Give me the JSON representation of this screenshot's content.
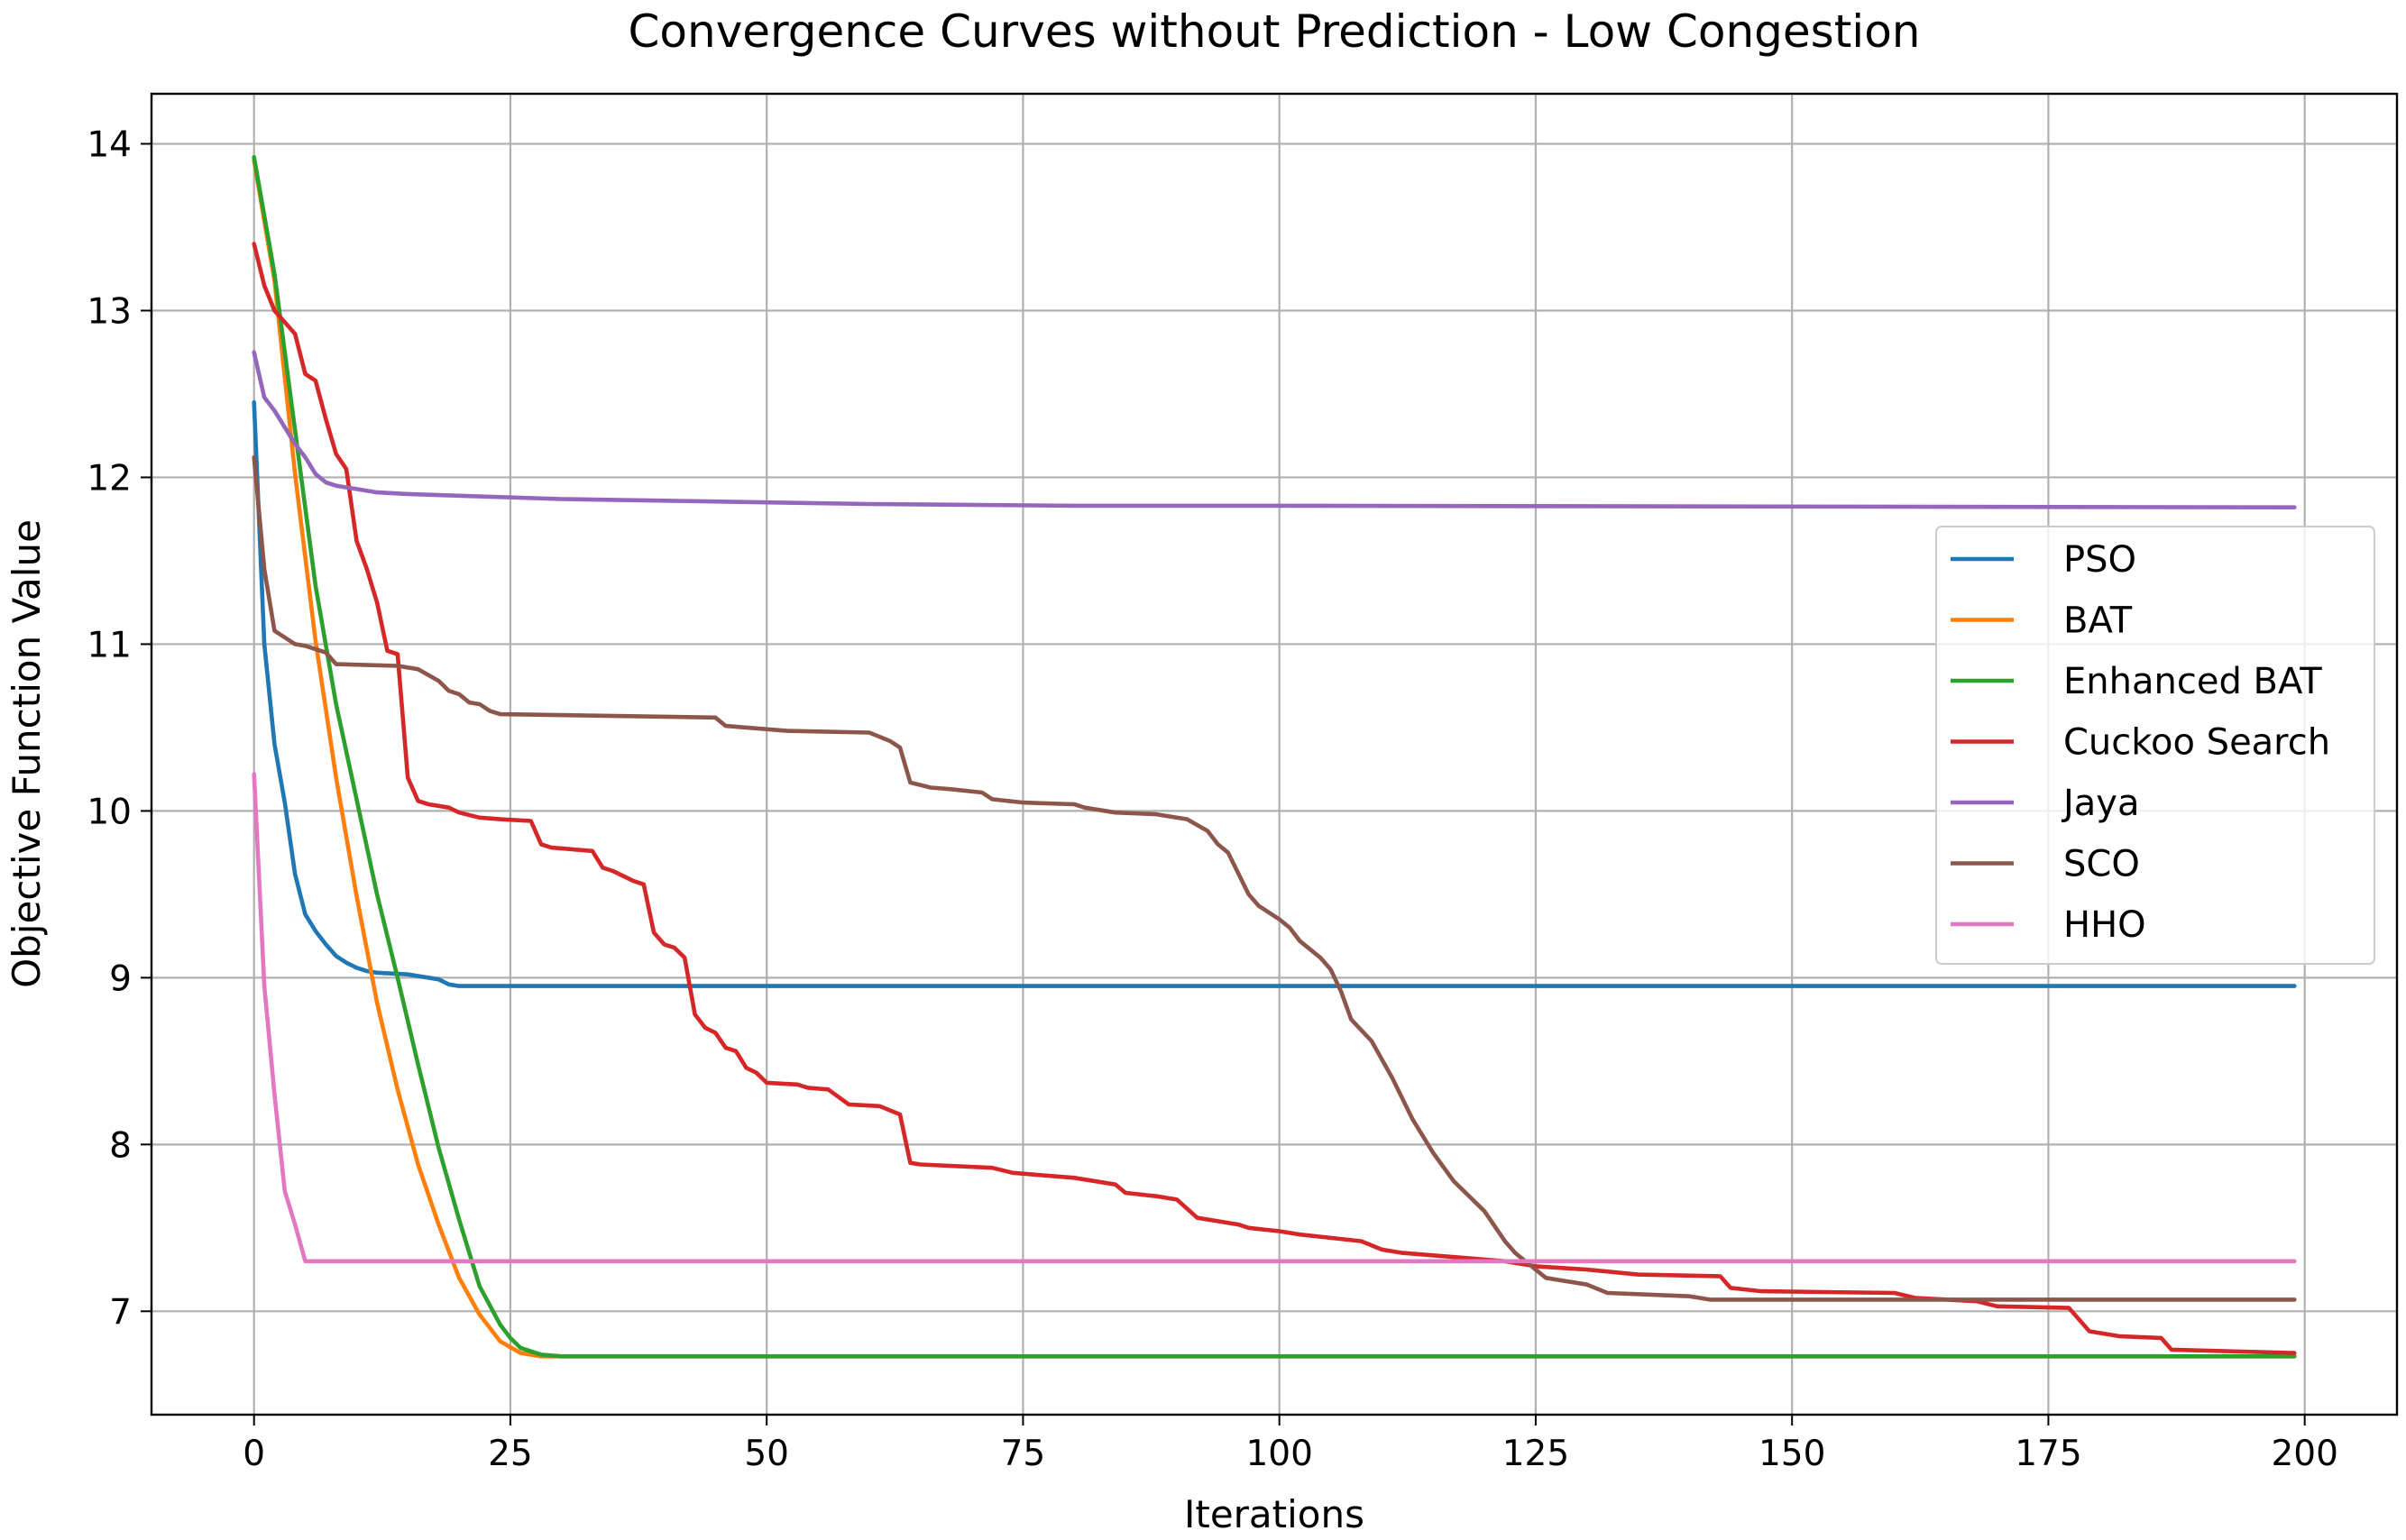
{
  "chart_data": {
    "type": "line",
    "title": "Convergence Curves without Prediction - Low Congestion",
    "xlabel": "Iterations",
    "ylabel": "Objective Function Value",
    "xlim": [
      -10,
      209
    ],
    "ylim": [
      6.38,
      14.3
    ],
    "xticks": [
      0,
      25,
      50,
      75,
      100,
      125,
      150,
      175,
      200
    ],
    "yticks": [
      7,
      8,
      9,
      10,
      11,
      12,
      13,
      14
    ],
    "xtick_labels": [
      "0",
      "25",
      "50",
      "75",
      "100",
      "125",
      "150",
      "175",
      "200"
    ],
    "ytick_labels": [
      "7",
      "8",
      "9",
      "10",
      "11",
      "12",
      "13",
      "14"
    ],
    "grid": true,
    "legend_position": "center-right",
    "series": [
      {
        "name": "PSO",
        "color": "#1f77b4",
        "points": [
          [
            0,
            12.45
          ],
          [
            1,
            11.0
          ],
          [
            2,
            10.4
          ],
          [
            3,
            10.05
          ],
          [
            4,
            9.62
          ],
          [
            5,
            9.38
          ],
          [
            6,
            9.28
          ],
          [
            7,
            9.2
          ],
          [
            8,
            9.13
          ],
          [
            9,
            9.09
          ],
          [
            10,
            9.06
          ],
          [
            11,
            9.04
          ],
          [
            12,
            9.03
          ],
          [
            15,
            9.02
          ],
          [
            18,
            8.99
          ],
          [
            19,
            8.96
          ],
          [
            20,
            8.95
          ],
          [
            199,
            8.95
          ]
        ]
      },
      {
        "name": "BAT",
        "color": "#ff7f0e",
        "points": [
          [
            0,
            13.9
          ],
          [
            2,
            13.18
          ],
          [
            4,
            12.02
          ],
          [
            6,
            11.02
          ],
          [
            8,
            10.2
          ],
          [
            10,
            9.49
          ],
          [
            12,
            8.85
          ],
          [
            14,
            8.33
          ],
          [
            16,
            7.88
          ],
          [
            18,
            7.52
          ],
          [
            20,
            7.2
          ],
          [
            22,
            6.98
          ],
          [
            24,
            6.82
          ],
          [
            26,
            6.75
          ],
          [
            28,
            6.73
          ],
          [
            199,
            6.73
          ]
        ]
      },
      {
        "name": "Enhanced BAT",
        "color": "#2ca02c",
        "points": [
          [
            0,
            13.92
          ],
          [
            2,
            13.22
          ],
          [
            4,
            12.28
          ],
          [
            6,
            11.35
          ],
          [
            8,
            10.64
          ],
          [
            10,
            10.07
          ],
          [
            12,
            9.5
          ],
          [
            14,
            9.0
          ],
          [
            16,
            8.48
          ],
          [
            18,
            7.98
          ],
          [
            20,
            7.55
          ],
          [
            22,
            7.15
          ],
          [
            24,
            6.92
          ],
          [
            25,
            6.84
          ],
          [
            26,
            6.78
          ],
          [
            28,
            6.74
          ],
          [
            30,
            6.73
          ],
          [
            199,
            6.73
          ]
        ]
      },
      {
        "name": "Cuckoo Search",
        "color": "#d62728",
        "points": [
          [
            0,
            13.4
          ],
          [
            1,
            13.15
          ],
          [
            2,
            13.0
          ],
          [
            3,
            12.93
          ],
          [
            4,
            12.86
          ],
          [
            5,
            12.62
          ],
          [
            6,
            12.58
          ],
          [
            7,
            12.35
          ],
          [
            8,
            12.14
          ],
          [
            9,
            12.05
          ],
          [
            10,
            11.62
          ],
          [
            11,
            11.45
          ],
          [
            12,
            11.25
          ],
          [
            13,
            10.96
          ],
          [
            14,
            10.94
          ],
          [
            15,
            10.2
          ],
          [
            16,
            10.06
          ],
          [
            17,
            10.04
          ],
          [
            18,
            10.03
          ],
          [
            19,
            10.02
          ],
          [
            20,
            9.99
          ],
          [
            22,
            9.96
          ],
          [
            24,
            9.95
          ],
          [
            27,
            9.94
          ],
          [
            28,
            9.8
          ],
          [
            29,
            9.78
          ],
          [
            33,
            9.76
          ],
          [
            34,
            9.66
          ],
          [
            35,
            9.64
          ],
          [
            37,
            9.58
          ],
          [
            38,
            9.56
          ],
          [
            39,
            9.27
          ],
          [
            40,
            9.2
          ],
          [
            41,
            9.18
          ],
          [
            42,
            9.12
          ],
          [
            43,
            8.78
          ],
          [
            44,
            8.7
          ],
          [
            45,
            8.67
          ],
          [
            46,
            8.58
          ],
          [
            47,
            8.56
          ],
          [
            48,
            8.46
          ],
          [
            49,
            8.43
          ],
          [
            50,
            8.37
          ],
          [
            53,
            8.36
          ],
          [
            54,
            8.34
          ],
          [
            56,
            8.33
          ],
          [
            58,
            8.24
          ],
          [
            61,
            8.23
          ],
          [
            63,
            8.18
          ],
          [
            64,
            7.89
          ],
          [
            65,
            7.88
          ],
          [
            72,
            7.86
          ],
          [
            74,
            7.83
          ],
          [
            80,
            7.8
          ],
          [
            84,
            7.76
          ],
          [
            85,
            7.71
          ],
          [
            88,
            7.69
          ],
          [
            90,
            7.67
          ],
          [
            92,
            7.56
          ],
          [
            94,
            7.54
          ],
          [
            96,
            7.52
          ],
          [
            97,
            7.5
          ],
          [
            100,
            7.48
          ],
          [
            102,
            7.46
          ],
          [
            105,
            7.44
          ],
          [
            108,
            7.42
          ],
          [
            110,
            7.37
          ],
          [
            112,
            7.35
          ],
          [
            118,
            7.32
          ],
          [
            122,
            7.3
          ],
          [
            125,
            7.27
          ],
          [
            130,
            7.25
          ],
          [
            135,
            7.22
          ],
          [
            143,
            7.21
          ],
          [
            144,
            7.14
          ],
          [
            147,
            7.12
          ],
          [
            160,
            7.11
          ],
          [
            162,
            7.08
          ],
          [
            168,
            7.06
          ],
          [
            170,
            7.03
          ],
          [
            177,
            7.02
          ],
          [
            179,
            6.88
          ],
          [
            182,
            6.85
          ],
          [
            186,
            6.84
          ],
          [
            187,
            6.77
          ],
          [
            199,
            6.75
          ]
        ]
      },
      {
        "name": "Jaya",
        "color": "#9467bd",
        "points": [
          [
            0,
            12.75
          ],
          [
            1,
            12.48
          ],
          [
            2,
            12.4
          ],
          [
            3,
            12.3
          ],
          [
            4,
            12.2
          ],
          [
            5,
            12.12
          ],
          [
            6,
            12.02
          ],
          [
            7,
            11.97
          ],
          [
            8,
            11.95
          ],
          [
            10,
            11.93
          ],
          [
            12,
            11.91
          ],
          [
            15,
            11.9
          ],
          [
            20,
            11.89
          ],
          [
            30,
            11.87
          ],
          [
            40,
            11.86
          ],
          [
            50,
            11.85
          ],
          [
            60,
            11.84
          ],
          [
            80,
            11.83
          ],
          [
            100,
            11.83
          ],
          [
            199,
            11.82
          ]
        ]
      },
      {
        "name": "SCO",
        "color": "#8c564b",
        "points": [
          [
            0,
            12.12
          ],
          [
            1,
            11.45
          ],
          [
            2,
            11.08
          ],
          [
            3,
            11.04
          ],
          [
            4,
            11.0
          ],
          [
            5,
            10.99
          ],
          [
            7,
            10.95
          ],
          [
            8,
            10.88
          ],
          [
            14,
            10.87
          ],
          [
            16,
            10.85
          ],
          [
            18,
            10.78
          ],
          [
            19,
            10.72
          ],
          [
            20,
            10.7
          ],
          [
            21,
            10.65
          ],
          [
            22,
            10.64
          ],
          [
            23,
            10.6
          ],
          [
            24,
            10.58
          ],
          [
            45,
            10.56
          ],
          [
            46,
            10.51
          ],
          [
            48,
            10.5
          ],
          [
            52,
            10.48
          ],
          [
            60,
            10.47
          ],
          [
            62,
            10.42
          ],
          [
            63,
            10.38
          ],
          [
            64,
            10.17
          ],
          [
            66,
            10.14
          ],
          [
            68,
            10.13
          ],
          [
            71,
            10.11
          ],
          [
            72,
            10.07
          ],
          [
            75,
            10.05
          ],
          [
            80,
            10.04
          ],
          [
            81,
            10.02
          ],
          [
            84,
            9.99
          ],
          [
            88,
            9.98
          ],
          [
            91,
            9.95
          ],
          [
            93,
            9.88
          ],
          [
            94,
            9.8
          ],
          [
            95,
            9.75
          ],
          [
            97,
            9.5
          ],
          [
            98,
            9.43
          ],
          [
            100,
            9.35
          ],
          [
            101,
            9.3
          ],
          [
            102,
            9.22
          ],
          [
            104,
            9.12
          ],
          [
            105,
            9.05
          ],
          [
            106,
            8.92
          ],
          [
            107,
            8.75
          ],
          [
            109,
            8.62
          ],
          [
            111,
            8.4
          ],
          [
            113,
            8.15
          ],
          [
            115,
            7.95
          ],
          [
            117,
            7.78
          ],
          [
            120,
            7.6
          ],
          [
            122,
            7.42
          ],
          [
            123,
            7.35
          ],
          [
            125,
            7.25
          ],
          [
            126,
            7.2
          ],
          [
            128,
            7.18
          ],
          [
            130,
            7.16
          ],
          [
            132,
            7.11
          ],
          [
            136,
            7.1
          ],
          [
            140,
            7.09
          ],
          [
            142,
            7.07
          ],
          [
            150,
            7.07
          ],
          [
            199,
            7.07
          ]
        ]
      },
      {
        "name": "HHO",
        "color": "#e377c2",
        "points": [
          [
            0,
            10.22
          ],
          [
            1,
            8.95
          ],
          [
            2,
            8.3
          ],
          [
            3,
            7.72
          ],
          [
            4,
            7.52
          ],
          [
            5,
            7.3
          ],
          [
            199,
            7.3
          ]
        ]
      }
    ]
  }
}
